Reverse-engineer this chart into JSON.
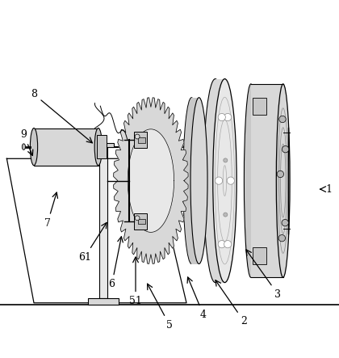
{
  "bg_color": "#ffffff",
  "line_color": "#000000",
  "figsize": [
    4.2,
    4.43
  ],
  "dpi": 100,
  "gray1": "#e8e8e8",
  "gray2": "#d8d8d8",
  "gray3": "#c8c8c8",
  "gray4": "#b8b8b8",
  "gray5": "#a8a8a8",
  "label_configs": [
    [
      "1",
      [
        0.97,
        0.47
      ],
      [
        0.935,
        0.47
      ]
    ],
    [
      "2",
      [
        0.72,
        0.08
      ],
      [
        0.63,
        0.21
      ]
    ],
    [
      "3",
      [
        0.82,
        0.16
      ],
      [
        0.72,
        0.3
      ]
    ],
    [
      "4",
      [
        0.6,
        0.1
      ],
      [
        0.55,
        0.22
      ]
    ],
    [
      "5",
      [
        0.5,
        0.07
      ],
      [
        0.43,
        0.2
      ]
    ],
    [
      "51",
      [
        0.4,
        0.14
      ],
      [
        0.4,
        0.28
      ]
    ],
    [
      "6",
      [
        0.33,
        0.19
      ],
      [
        0.36,
        0.34
      ]
    ],
    [
      "61",
      [
        0.25,
        0.27
      ],
      [
        0.32,
        0.38
      ]
    ],
    [
      "7",
      [
        0.14,
        0.37
      ],
      [
        0.17,
        0.47
      ]
    ],
    [
      "8",
      [
        0.1,
        0.75
      ],
      [
        0.28,
        0.6
      ]
    ],
    [
      "9",
      [
        0.07,
        0.63
      ],
      [
        0.1,
        0.56
      ]
    ]
  ]
}
